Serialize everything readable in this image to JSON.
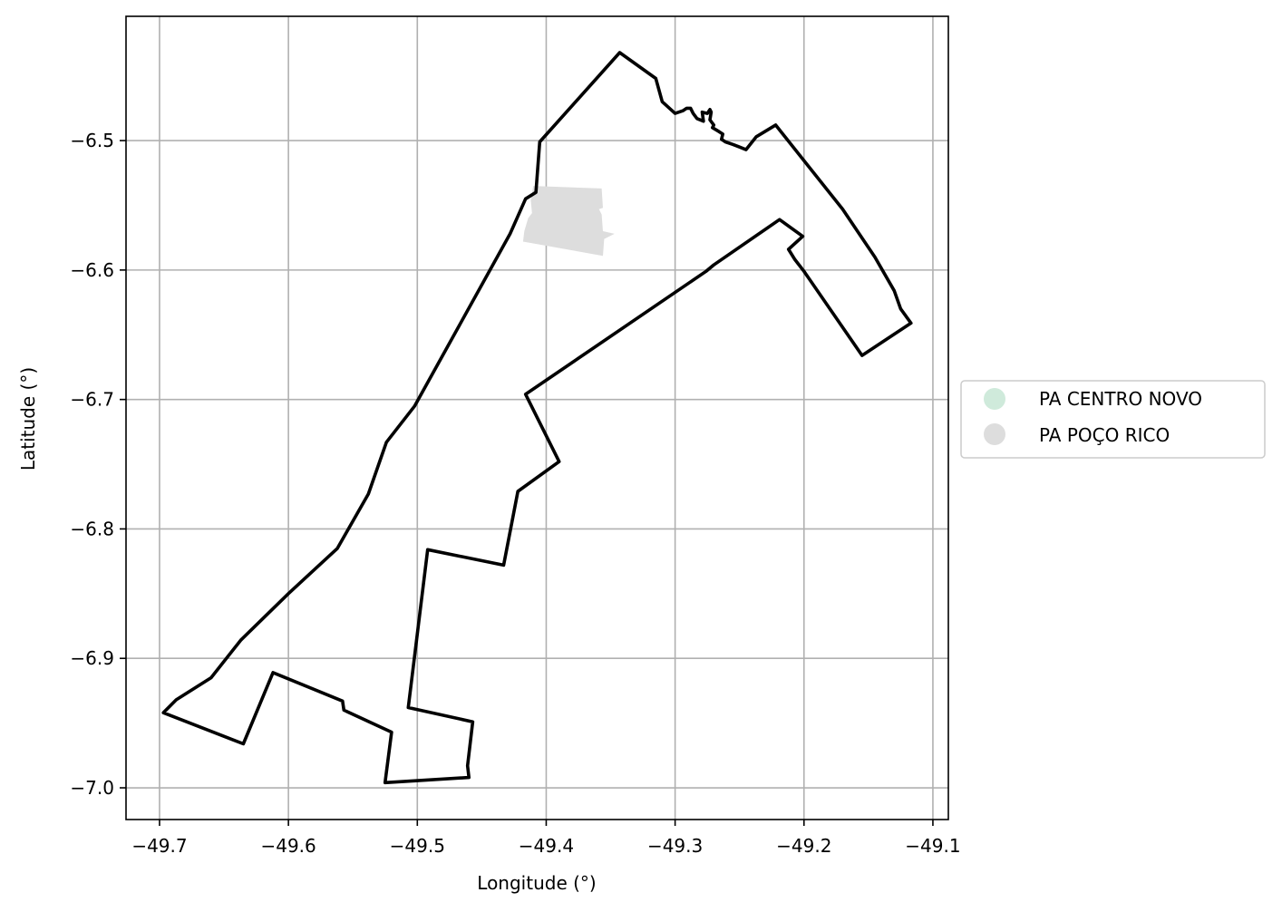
{
  "chart_data": {
    "type": "map",
    "xlabel": "Longitude (°)",
    "ylabel": "Latitude (°)",
    "xlim": [
      -49.726,
      -49.088
    ],
    "ylim": [
      -7.0245,
      -6.404
    ],
    "grid": true,
    "x_ticks": [
      {
        "value": -49.7,
        "label": "−49.7"
      },
      {
        "value": -49.6,
        "label": "−49.6"
      },
      {
        "value": -49.5,
        "label": "−49.5"
      },
      {
        "value": -49.4,
        "label": "−49.4"
      },
      {
        "value": -49.3,
        "label": "−49.3"
      },
      {
        "value": -49.2,
        "label": "−49.2"
      },
      {
        "value": -49.1,
        "label": "−49.1"
      }
    ],
    "y_ticks": [
      {
        "value": -6.5,
        "label": "−6.5"
      },
      {
        "value": -6.6,
        "label": "−6.6"
      },
      {
        "value": -6.7,
        "label": "−6.7"
      },
      {
        "value": -6.8,
        "label": "−6.8"
      },
      {
        "value": -6.9,
        "label": "−6.9"
      },
      {
        "value": -7.0,
        "label": "−7.0"
      }
    ],
    "legend_position": "center-right",
    "series": [
      {
        "name": "PA CENTRO NOVO",
        "color": "#cfeadb",
        "fill": "none",
        "stroke": "#000000",
        "coordinates": [
          [
            -49.343,
            -6.432
          ],
          [
            -49.315,
            -6.452
          ],
          [
            -49.31,
            -6.47
          ],
          [
            -49.3,
            -6.479
          ],
          [
            -49.294,
            -6.477
          ],
          [
            -49.291,
            -6.475
          ],
          [
            -49.288,
            -6.475
          ],
          [
            -49.286,
            -6.479
          ],
          [
            -49.283,
            -6.483
          ],
          [
            -49.278,
            -6.485
          ],
          [
            -49.279,
            -6.478
          ],
          [
            -49.275,
            -6.479
          ],
          [
            -49.273,
            -6.476
          ],
          [
            -49.272,
            -6.478
          ],
          [
            -49.273,
            -6.484
          ],
          [
            -49.27,
            -6.488
          ],
          [
            -49.271,
            -6.49
          ],
          [
            -49.266,
            -6.493
          ],
          [
            -49.263,
            -6.495
          ],
          [
            -49.264,
            -6.499
          ],
          [
            -49.261,
            -6.501
          ],
          [
            -49.255,
            -6.503
          ],
          [
            -49.25,
            -6.505
          ],
          [
            -49.245,
            -6.507
          ],
          [
            -49.237,
            -6.497
          ],
          [
            -49.222,
            -6.488
          ],
          [
            -49.17,
            -6.553
          ],
          [
            -49.145,
            -6.59
          ],
          [
            -49.13,
            -6.616
          ],
          [
            -49.125,
            -6.63
          ],
          [
            -49.117,
            -6.641
          ],
          [
            -49.155,
            -6.666
          ],
          [
            -49.2,
            -6.601
          ],
          [
            -49.207,
            -6.592
          ],
          [
            -49.212,
            -6.584
          ],
          [
            -49.201,
            -6.574
          ],
          [
            -49.219,
            -6.561
          ],
          [
            -49.27,
            -6.596
          ],
          [
            -49.276,
            -6.601
          ],
          [
            -49.416,
            -6.696
          ],
          [
            -49.39,
            -6.748
          ],
          [
            -49.422,
            -6.771
          ],
          [
            -49.433,
            -6.828
          ],
          [
            -49.492,
            -6.816
          ],
          [
            -49.507,
            -6.938
          ],
          [
            -49.457,
            -6.949
          ],
          [
            -49.461,
            -6.983
          ],
          [
            -49.46,
            -6.992
          ],
          [
            -49.525,
            -6.996
          ],
          [
            -49.52,
            -6.957
          ],
          [
            -49.557,
            -6.94
          ],
          [
            -49.558,
            -6.933
          ],
          [
            -49.612,
            -6.911
          ],
          [
            -49.635,
            -6.966
          ],
          [
            -49.697,
            -6.942
          ],
          [
            -49.687,
            -6.932
          ],
          [
            -49.66,
            -6.915
          ],
          [
            -49.637,
            -6.886
          ],
          [
            -49.6,
            -6.85
          ],
          [
            -49.562,
            -6.815
          ],
          [
            -49.538,
            -6.773
          ],
          [
            -49.524,
            -6.733
          ],
          [
            -49.502,
            -6.705
          ],
          [
            -49.428,
            -6.572
          ],
          [
            -49.416,
            -6.545
          ],
          [
            -49.408,
            -6.54
          ],
          [
            -49.405,
            -6.501
          ],
          [
            -49.343,
            -6.432
          ]
        ]
      },
      {
        "name": "PA POÇO RICO",
        "color": "#dddddd",
        "fill": "#dddddd",
        "stroke": "none",
        "coordinates": [
          [
            -49.41,
            -6.535
          ],
          [
            -49.357,
            -6.537
          ],
          [
            -49.356,
            -6.552
          ],
          [
            -49.359,
            -6.553
          ],
          [
            -49.357,
            -6.557
          ],
          [
            -49.356,
            -6.57
          ],
          [
            -49.347,
            -6.572
          ],
          [
            -49.355,
            -6.576
          ],
          [
            -49.356,
            -6.589
          ],
          [
            -49.418,
            -6.578
          ],
          [
            -49.417,
            -6.57
          ],
          [
            -49.414,
            -6.56
          ],
          [
            -49.411,
            -6.556
          ],
          [
            -49.412,
            -6.546
          ],
          [
            -49.41,
            -6.535
          ]
        ]
      }
    ]
  }
}
